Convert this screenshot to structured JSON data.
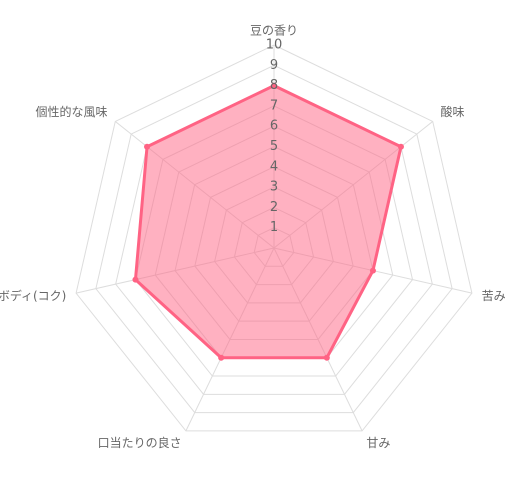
{
  "chart_data": {
    "type": "radar",
    "categories": [
      "豆の香り",
      "酸味",
      "苦み",
      "甘み",
      "口当たりの良さ",
      "ボディ(コク)",
      "個性的な風味"
    ],
    "values": [
      8,
      8,
      5,
      6,
      6,
      7,
      8
    ],
    "color": "#ff6384",
    "ylim": [
      0,
      10
    ],
    "yticks": [
      1,
      2,
      3,
      4,
      5,
      6,
      7,
      8,
      9,
      10
    ],
    "grid": true
  }
}
